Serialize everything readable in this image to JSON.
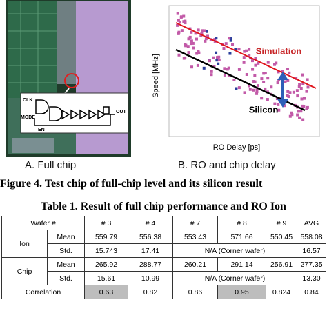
{
  "figure": {
    "circuit_labels": [
      "CLK",
      "MODE",
      "EN",
      "OUT"
    ],
    "panel_a_caption": "A. Full chip",
    "y_axis_label": "Speed [MHz]",
    "x_axis_label": "RO Delay [ps]",
    "annotation_simulation": "Simulation",
    "annotation_silicon": "Silicon",
    "panel_b_caption": "B. RO and chip delay",
    "caption": "Figure 4. Test chip of full-chip level and its silicon result"
  },
  "table": {
    "title": "Table 1. Result of full chip performance and RO Ion",
    "header": [
      "Wafer #",
      "# 3",
      "# 4",
      "# 7",
      "# 8",
      "# 9",
      "AVG"
    ],
    "groups": [
      {
        "name": "Ion",
        "rows": [
          {
            "label": "Mean",
            "cells": [
              "559.79",
              "556.38",
              "553.43",
              "571.66",
              "550.45",
              "558.08"
            ]
          },
          {
            "label": "Std.",
            "cells": [
              "15.743",
              "17.41",
              "N/A (Corner wafer)",
              "16.57"
            ]
          }
        ]
      },
      {
        "name": "Chip",
        "rows": [
          {
            "label": "Mean",
            "cells": [
              "265.92",
              "288.77",
              "260.21",
              "291.14",
              "256.91",
              "277.35"
            ]
          },
          {
            "label": "Std.",
            "cells": [
              "15.61",
              "10.99",
              "N/A (Corner wafer)",
              "13.30"
            ]
          }
        ]
      }
    ],
    "correlation": {
      "label": "Correlation",
      "cells": [
        "0.63",
        "0.82",
        "0.86",
        "0.95",
        "0.824",
        "0.84"
      ]
    }
  }
}
